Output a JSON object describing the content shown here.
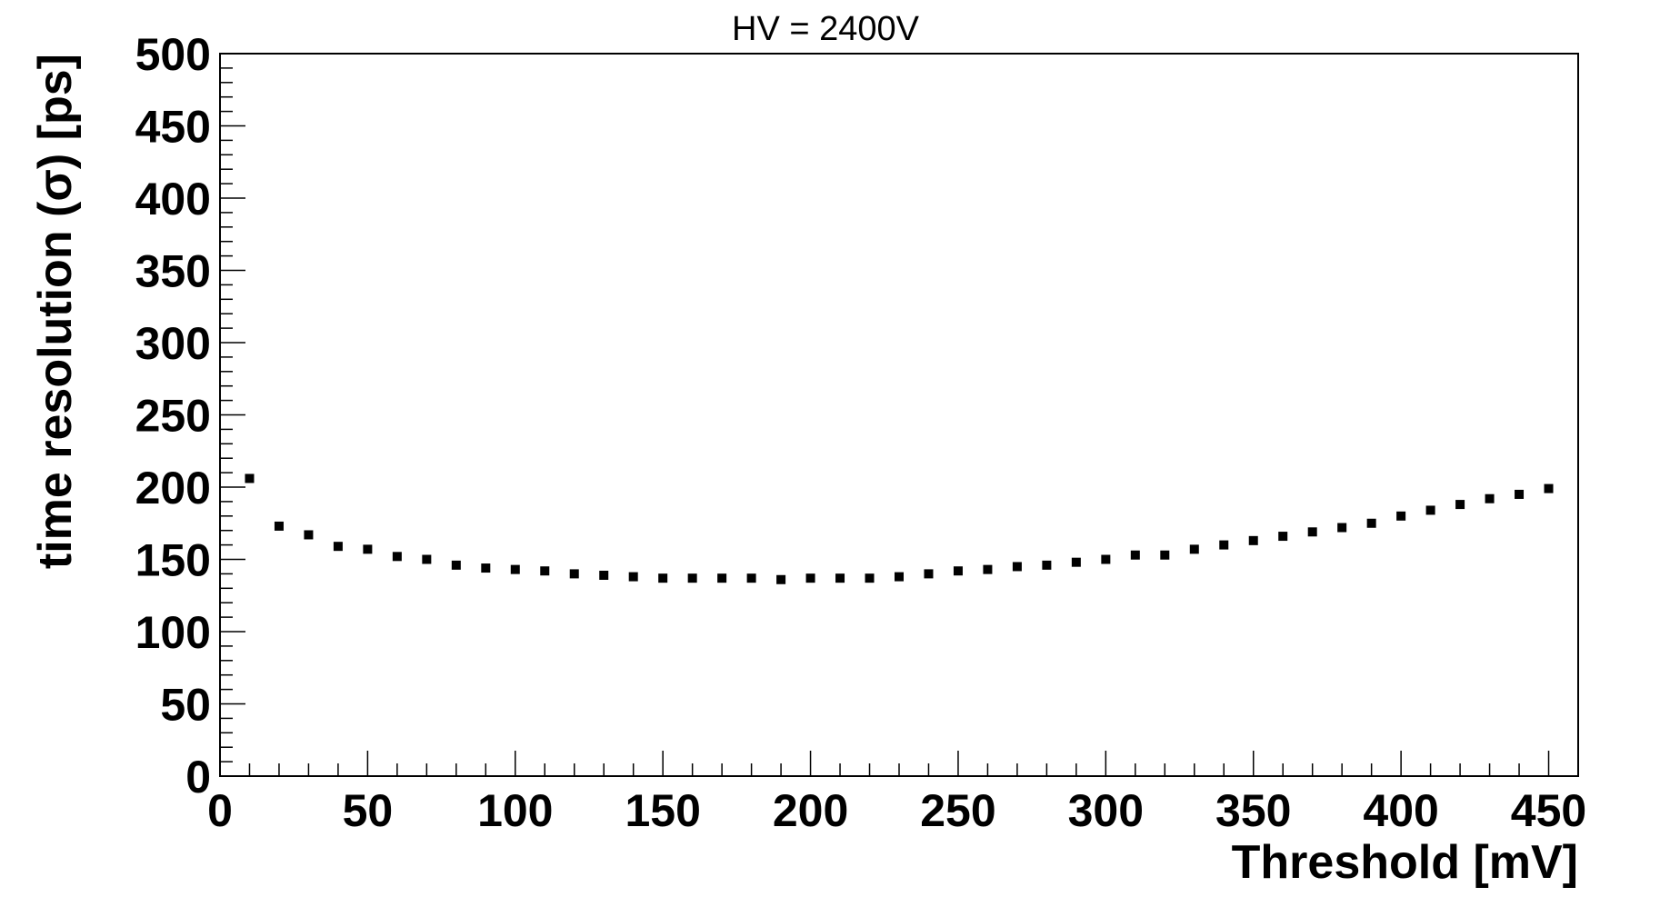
{
  "chart_data": {
    "type": "scatter",
    "title": "HV = 2400V",
    "xlabel": "Threshold [mV]",
    "ylabel": "time resolution (σ) [ps]",
    "xlim": [
      0,
      460
    ],
    "ylim": [
      0,
      500
    ],
    "x_ticks": [
      "0",
      "50",
      "100",
      "150",
      "200",
      "250",
      "300",
      "350",
      "400",
      "450"
    ],
    "y_ticks": [
      "0",
      "50",
      "100",
      "150",
      "200",
      "250",
      "300",
      "350",
      "400",
      "450",
      "500"
    ],
    "grid": false,
    "legend": "none",
    "marker_color": "#000000",
    "series": [
      {
        "x": [
          10,
          20,
          30,
          40,
          50,
          60,
          70,
          80,
          90,
          100,
          110,
          120,
          130,
          140,
          150,
          160,
          170,
          180,
          190,
          200,
          210,
          220,
          230,
          240,
          250,
          260,
          270,
          280,
          290,
          300,
          310,
          320,
          330,
          340,
          350,
          360,
          370,
          380,
          390,
          400,
          410,
          420,
          430,
          440,
          450
        ],
        "y": [
          206,
          173,
          167,
          159,
          157,
          152,
          150,
          146,
          144,
          143,
          142,
          140,
          139,
          138,
          137,
          137,
          137,
          137,
          136,
          137,
          137,
          137,
          138,
          140,
          142,
          143,
          145,
          146,
          148,
          150,
          153,
          153,
          157,
          160,
          163,
          166,
          169,
          172,
          175,
          180,
          184,
          188,
          192,
          195,
          199
        ]
      }
    ]
  }
}
